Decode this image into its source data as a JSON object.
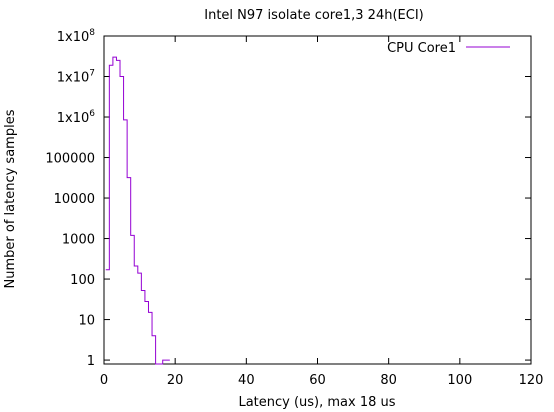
{
  "chart_data": {
    "type": "line",
    "step": true,
    "title": "Intel N97 isolate core1,3 24h(ECI)",
    "xlabel": "Latency (us), max 18 us",
    "ylabel": "Number of latency samples",
    "xlim": [
      0,
      120
    ],
    "ylim": [
      0.8,
      100000000
    ],
    "y_scale": "log",
    "grid": false,
    "legend_position": "top-right",
    "x_ticks": [
      0,
      20,
      40,
      60,
      80,
      100,
      120
    ],
    "x_tick_labels": [
      "0",
      "20",
      "40",
      "60",
      "80",
      "100",
      "120"
    ],
    "y_ticks": [
      1,
      10,
      100,
      1000,
      10000,
      100000,
      1000000,
      10000000,
      100000000
    ],
    "y_tick_labels": [
      {
        "base": "1",
        "exp": ""
      },
      {
        "base": "10",
        "exp": ""
      },
      {
        "base": "100",
        "exp": ""
      },
      {
        "base": "1000",
        "exp": ""
      },
      {
        "base": "10000",
        "exp": ""
      },
      {
        "base": "100000",
        "exp": ""
      },
      {
        "base": "1x10",
        "exp": "6"
      },
      {
        "base": "1x10",
        "exp": "7"
      },
      {
        "base": "1x10",
        "exp": "8"
      }
    ],
    "series": [
      {
        "name": "CPU Core1",
        "color": "#9400d3",
        "x": [
          1,
          2,
          3,
          4,
          5,
          6,
          7,
          8,
          9,
          10,
          11,
          12,
          13,
          14,
          15,
          16,
          17,
          18
        ],
        "y": [
          170,
          19000000,
          30000000,
          25000000,
          10000000,
          850000,
          32000,
          1200,
          210,
          140,
          52,
          28,
          15,
          4,
          0,
          0,
          1,
          1
        ]
      }
    ]
  }
}
